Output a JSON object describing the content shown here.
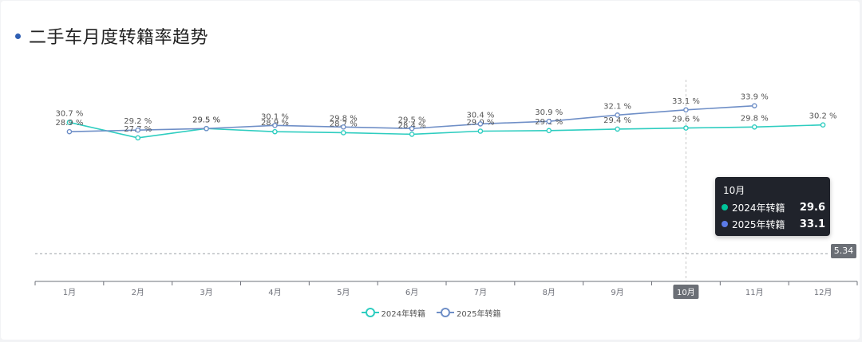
{
  "title": "二手车月度转籍率趋势",
  "colors": {
    "series_2024": "#2ecdc0",
    "series_2025": "#6f8fc7",
    "title_dot": "#2f5fb3",
    "tooltip_dot_2024": "#00c49a",
    "tooltip_dot_2025": "#5b7be8"
  },
  "chart_data": {
    "type": "line",
    "categories": [
      "1月",
      "2月",
      "3月",
      "4月",
      "5月",
      "6月",
      "7月",
      "8月",
      "9月",
      "10月",
      "11月",
      "12月"
    ],
    "series": [
      {
        "name": "2024年转籍",
        "values": [
          30.7,
          27.7,
          29.5,
          28.9,
          28.7,
          28.4,
          29.0,
          29.1,
          29.4,
          29.6,
          29.8,
          30.2
        ],
        "labels": [
          "30.7 %",
          "27.7 %",
          "29.5 %",
          "28.9 %",
          "28.7 %",
          "28.4 %",
          "29.0 %",
          "29.1 %",
          "29.4 %",
          "29.6 %",
          "29.8 %",
          "30.2 %"
        ]
      },
      {
        "name": "2025年转籍",
        "values": [
          28.9,
          29.2,
          29.5,
          30.1,
          29.8,
          29.5,
          30.4,
          30.9,
          32.1,
          33.1,
          33.9,
          null
        ],
        "labels": [
          "28.9 %",
          "29.2 %",
          "29.5 %",
          "30.1 %",
          "29.8 %",
          "29.5 %",
          "30.4 %",
          "30.9 %",
          "32.1 %",
          "33.1 %",
          "33.9 %",
          ""
        ]
      }
    ],
    "reference_line": {
      "value": 5.34,
      "label": "5.34"
    },
    "highlighted_category": "10月",
    "ylim": [
      0,
      42
    ],
    "grid": false,
    "legend_position": "bottom-center"
  },
  "tooltip": {
    "title": "10月",
    "rows": [
      {
        "name": "2024年转籍",
        "value": "29.6"
      },
      {
        "name": "2025年转籍",
        "value": "33.1"
      }
    ]
  },
  "legend": [
    "2024年转籍",
    "2025年转籍"
  ]
}
